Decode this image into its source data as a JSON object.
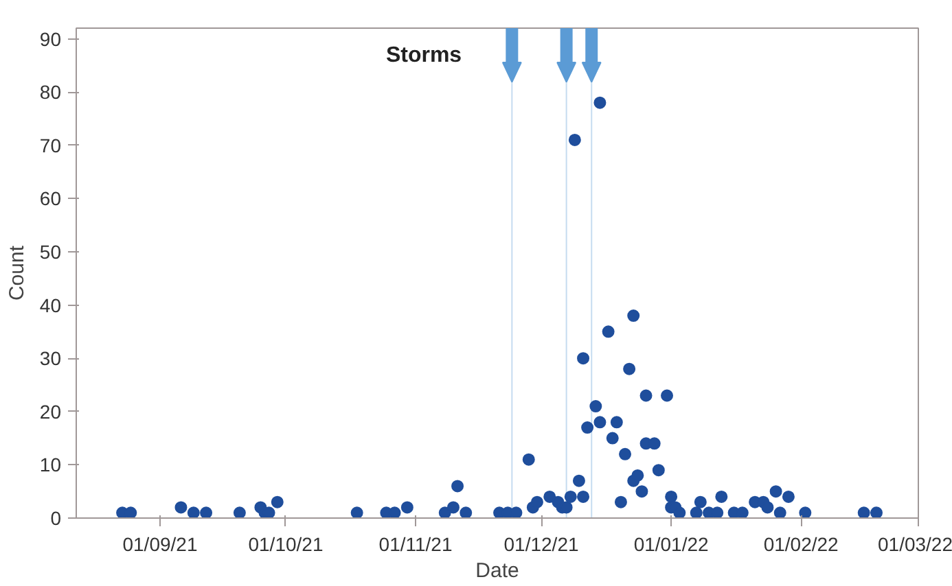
{
  "chart_data": {
    "type": "scatter",
    "xlabel": "Date",
    "ylabel": "Count",
    "x": [
      "2021-08-23",
      "2021-08-25",
      "2021-09-06",
      "2021-09-09",
      "2021-09-12",
      "2021-09-20",
      "2021-09-25",
      "2021-09-26",
      "2021-09-27",
      "2021-09-29",
      "2021-10-18",
      "2021-10-25",
      "2021-10-27",
      "2021-10-30",
      "2021-11-08",
      "2021-11-10",
      "2021-11-11",
      "2021-11-13",
      "2021-11-21",
      "2021-11-23",
      "2021-11-25",
      "2021-11-28",
      "2021-11-29",
      "2021-11-30",
      "2021-12-03",
      "2021-12-05",
      "2021-12-06",
      "2021-12-07",
      "2021-12-08",
      "2021-12-09",
      "2021-12-10",
      "2021-12-11",
      "2021-12-11",
      "2021-12-12",
      "2021-12-14",
      "2021-12-15",
      "2021-12-15",
      "2021-12-17",
      "2021-12-18",
      "2021-12-19",
      "2021-12-20",
      "2021-12-21",
      "2021-12-22",
      "2021-12-23",
      "2021-12-23",
      "2021-12-24",
      "2021-12-25",
      "2021-12-26",
      "2021-12-26",
      "2021-12-28",
      "2021-12-29",
      "2021-12-31",
      "2022-01-01",
      "2022-01-01",
      "2022-01-02",
      "2022-01-03",
      "2022-01-07",
      "2022-01-08",
      "2022-01-10",
      "2022-01-12",
      "2022-01-13",
      "2022-01-16",
      "2022-01-18",
      "2022-01-21",
      "2022-01-23",
      "2022-01-24",
      "2022-01-26",
      "2022-01-27",
      "2022-01-29",
      "2022-02-02",
      "2022-02-16",
      "2022-02-19"
    ],
    "values": [
      1,
      1,
      2,
      1,
      1,
      1,
      2,
      1,
      1,
      3,
      1,
      1,
      1,
      2,
      1,
      2,
      6,
      1,
      1,
      1,
      1,
      11,
      2,
      3,
      4,
      3,
      2,
      2,
      4,
      71,
      7,
      4,
      30,
      17,
      21,
      18,
      78,
      35,
      15,
      18,
      3,
      12,
      28,
      7,
      38,
      8,
      5,
      23,
      14,
      14,
      9,
      23,
      4,
      2,
      2,
      1,
      1,
      3,
      1,
      1,
      4,
      1,
      1,
      3,
      3,
      2,
      5,
      1,
      4,
      1,
      1,
      1
    ],
    "color": "#1f4e9c",
    "marker": "circle",
    "grid": false,
    "xlim": [
      "2021-08-12",
      "2022-03-01"
    ],
    "xticks": [
      {
        "value": "2021-09-01",
        "label": "01/09/21"
      },
      {
        "value": "2021-10-01",
        "label": "01/10/21"
      },
      {
        "value": "2021-11-01",
        "label": "01/11/21"
      },
      {
        "value": "2021-12-01",
        "label": "01/12/21"
      },
      {
        "value": "2022-01-01",
        "label": "01/01/22"
      },
      {
        "value": "2022-02-01",
        "label": "01/02/22"
      },
      {
        "value": "2022-03-01",
        "label": "01/03/22"
      }
    ],
    "ylim": [
      0,
      92
    ],
    "yticks": [
      0,
      10,
      20,
      30,
      40,
      50,
      60,
      70,
      80,
      90
    ],
    "ref_lines": [
      {
        "axis": "x",
        "value": "2021-11-24",
        "label": null,
        "color": "#5b9bd5"
      },
      {
        "axis": "x",
        "value": "2021-12-07",
        "label": null,
        "color": "#5b9bd5"
      },
      {
        "axis": "x",
        "value": "2021-12-13",
        "label": null,
        "color": "#5b9bd5"
      }
    ],
    "annotations": [
      "Storms"
    ]
  }
}
